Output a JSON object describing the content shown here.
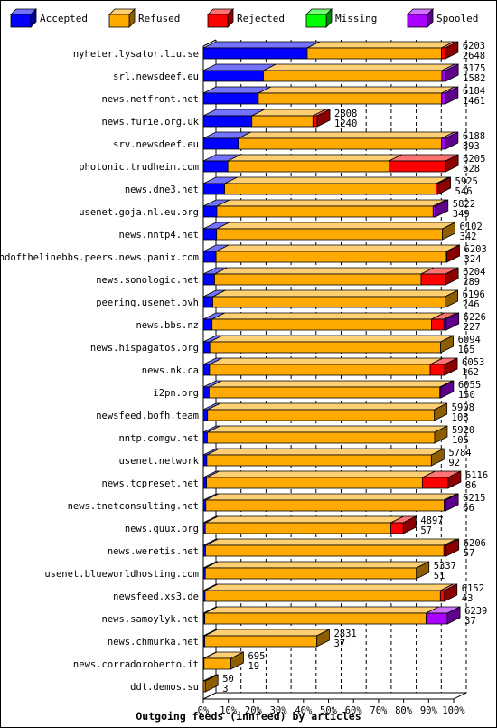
{
  "chart_data": {
    "type": "bar",
    "title": "Outgoing feeds (innfeed) by articles",
    "legend_position": "top",
    "xlim": [
      0,
      100
    ],
    "x_ticks": [
      "0%",
      "10%",
      "20%",
      "30%",
      "40%",
      "50%",
      "60%",
      "70%",
      "80%",
      "90%",
      "100%"
    ],
    "series": [
      {
        "name": "Accepted",
        "color": "#0000ff"
      },
      {
        "name": "Refused",
        "color": "#ffaa00"
      },
      {
        "name": "Rejected",
        "color": "#ff0000"
      },
      {
        "name": "Missing",
        "color": "#00ff00"
      },
      {
        "name": "Spooled",
        "color": "#aa00ff"
      }
    ],
    "rows": [
      {
        "label": "nyheter.lysator.liu.se",
        "offered": "6203",
        "accepted": "2648",
        "pct": {
          "accepted": 41.5,
          "refused": 53.6,
          "rejected": 1.6,
          "missing": 0,
          "spooled": 0
        }
      },
      {
        "label": "srl.newsdeef.eu",
        "offered": "6175",
        "accepted": "1582",
        "pct": {
          "accepted": 24.0,
          "refused": 71.3,
          "rejected": 0,
          "missing": 0,
          "spooled": 1.5
        }
      },
      {
        "label": "news.netfront.net",
        "offered": "6184",
        "accepted": "1461",
        "pct": {
          "accepted": 22.0,
          "refused": 73.2,
          "rejected": 0,
          "missing": 0,
          "spooled": 1.5
        }
      },
      {
        "label": "news.furie.org.uk",
        "offered": "2808",
        "accepted": "1240",
        "pct": {
          "accepted": 19.4,
          "refused": 24.4,
          "rejected": 1.7,
          "missing": 0,
          "spooled": 0
        }
      },
      {
        "label": "srv.newsdeef.eu",
        "offered": "6188",
        "accepted": "893",
        "pct": {
          "accepted": 14.0,
          "refused": 81.2,
          "rejected": 0,
          "missing": 0,
          "spooled": 1.5
        }
      },
      {
        "label": "photonic.trudheim.com",
        "offered": "6205",
        "accepted": "628",
        "pct": {
          "accepted": 9.8,
          "refused": 64.4,
          "rejected": 22.6,
          "missing": 0,
          "spooled": 0
        }
      },
      {
        "label": "news.dne3.net",
        "offered": "5925",
        "accepted": "546",
        "pct": {
          "accepted": 8.5,
          "refused": 84.5,
          "rejected": 0.7,
          "missing": 0,
          "spooled": 0
        }
      },
      {
        "label": "usenet.goja.nl.eu.org",
        "offered": "5822",
        "accepted": "349",
        "pct": {
          "accepted": 5.4,
          "refused": 86.4,
          "rejected": 0,
          "missing": 0,
          "spooled": 0.9
        }
      },
      {
        "label": "news.nntp4.net",
        "offered": "6102",
        "accepted": "342",
        "pct": {
          "accepted": 5.3,
          "refused": 90.2,
          "rejected": 0,
          "missing": 0,
          "spooled": 0
        }
      },
      {
        "label": "endofthelinebbs.peers.news.panix.com",
        "offered": "6203",
        "accepted": "324",
        "pct": {
          "accepted": 5.1,
          "refused": 92.0,
          "rejected": 0.2,
          "missing": 0,
          "spooled": 0
        }
      },
      {
        "label": "news.sonologic.net",
        "offered": "6204",
        "accepted": "289",
        "pct": {
          "accepted": 4.5,
          "refused": 82.5,
          "rejected": 9.8,
          "missing": 0,
          "spooled": 0
        }
      },
      {
        "label": "peering.usenet.ovh",
        "offered": "6196",
        "accepted": "246",
        "pct": {
          "accepted": 3.8,
          "refused": 92.8,
          "rejected": 0,
          "missing": 0,
          "spooled": 0
        }
      },
      {
        "label": "news.bbs.nz",
        "offered": "6226",
        "accepted": "227",
        "pct": {
          "accepted": 3.5,
          "refused": 87.7,
          "rejected": 4.9,
          "missing": 0,
          "spooled": 0.9
        }
      },
      {
        "label": "news.hispagatos.org",
        "offered": "6094",
        "accepted": "165",
        "pct": {
          "accepted": 2.6,
          "refused": 92.2,
          "rejected": 0,
          "missing": 0,
          "spooled": 0
        }
      },
      {
        "label": "news.nk.ca",
        "offered": "6053",
        "accepted": "162",
        "pct": {
          "accepted": 2.5,
          "refused": 88.1,
          "rejected": 5.8,
          "missing": 0,
          "spooled": 0
        }
      },
      {
        "label": "i2pn.org",
        "offered": "6055",
        "accepted": "150",
        "pct": {
          "accepted": 2.3,
          "refused": 92.2,
          "rejected": 0,
          "missing": 0,
          "spooled": 0.4
        }
      },
      {
        "label": "newsfeed.bofh.team",
        "offered": "5908",
        "accepted": "108",
        "pct": {
          "accepted": 1.7,
          "refused": 90.6,
          "rejected": 0,
          "missing": 0,
          "spooled": 0
        }
      },
      {
        "label": "nntp.comgw.net",
        "offered": "5920",
        "accepted": "105",
        "pct": {
          "accepted": 1.6,
          "refused": 90.8,
          "rejected": 0,
          "missing": 0,
          "spooled": 0
        }
      },
      {
        "label": "usenet.network",
        "offered": "5784",
        "accepted": "92",
        "pct": {
          "accepted": 1.4,
          "refused": 89.7,
          "rejected": 0,
          "missing": 0,
          "spooled": 0
        }
      },
      {
        "label": "news.tcpreset.net",
        "offered": "6116",
        "accepted": "86",
        "pct": {
          "accepted": 1.3,
          "refused": 86.2,
          "rejected": 10.3,
          "missing": 0,
          "spooled": 0
        }
      },
      {
        "label": "news.tnetconsulting.net",
        "offered": "6215",
        "accepted": "66",
        "pct": {
          "accepted": 1.0,
          "refused": 95.2,
          "rejected": 0,
          "missing": 0,
          "spooled": 0.6
        }
      },
      {
        "label": "news.quux.org",
        "offered": "4897",
        "accepted": "57",
        "pct": {
          "accepted": 0.8,
          "refused": 74.1,
          "rejected": 5.0,
          "missing": 0,
          "spooled": 0
        }
      },
      {
        "label": "news.weretis.net",
        "offered": "6206",
        "accepted": "57",
        "pct": {
          "accepted": 0.9,
          "refused": 95.2,
          "rejected": 0.9,
          "missing": 0,
          "spooled": 0
        }
      },
      {
        "label": "usenet.blueworldhosting.com",
        "offered": "5337",
        "accepted": "51",
        "pct": {
          "accepted": 0.8,
          "refused": 84.3,
          "rejected": 0,
          "missing": 0,
          "spooled": 0
        }
      },
      {
        "label": "newsfeed.xs3.de",
        "offered": "6152",
        "accepted": "43",
        "pct": {
          "accepted": 0.7,
          "refused": 94.0,
          "rejected": 1.6,
          "missing": 0,
          "spooled": 0
        }
      },
      {
        "label": "news.samoylyk.net",
        "offered": "6239",
        "accepted": "37",
        "pct": {
          "accepted": 0.6,
          "refused": 88.4,
          "rejected": 0,
          "missing": 0,
          "spooled": 8.5
        }
      },
      {
        "label": "news.chmurka.net",
        "offered": "2831",
        "accepted": "37",
        "pct": {
          "accepted": 0.6,
          "refused": 44.7,
          "rejected": 0,
          "missing": 0,
          "spooled": 0
        }
      },
      {
        "label": "news.corradoroberto.it",
        "offered": "695",
        "accepted": "19",
        "pct": {
          "accepted": 0.3,
          "refused": 10.7,
          "rejected": 0,
          "missing": 0,
          "spooled": 0
        }
      },
      {
        "label": "ddt.demos.su",
        "offered": "50",
        "accepted": "3",
        "pct": {
          "accepted": 0.05,
          "refused": 0.75,
          "rejected": 0,
          "missing": 0,
          "spooled": 0
        }
      }
    ]
  }
}
